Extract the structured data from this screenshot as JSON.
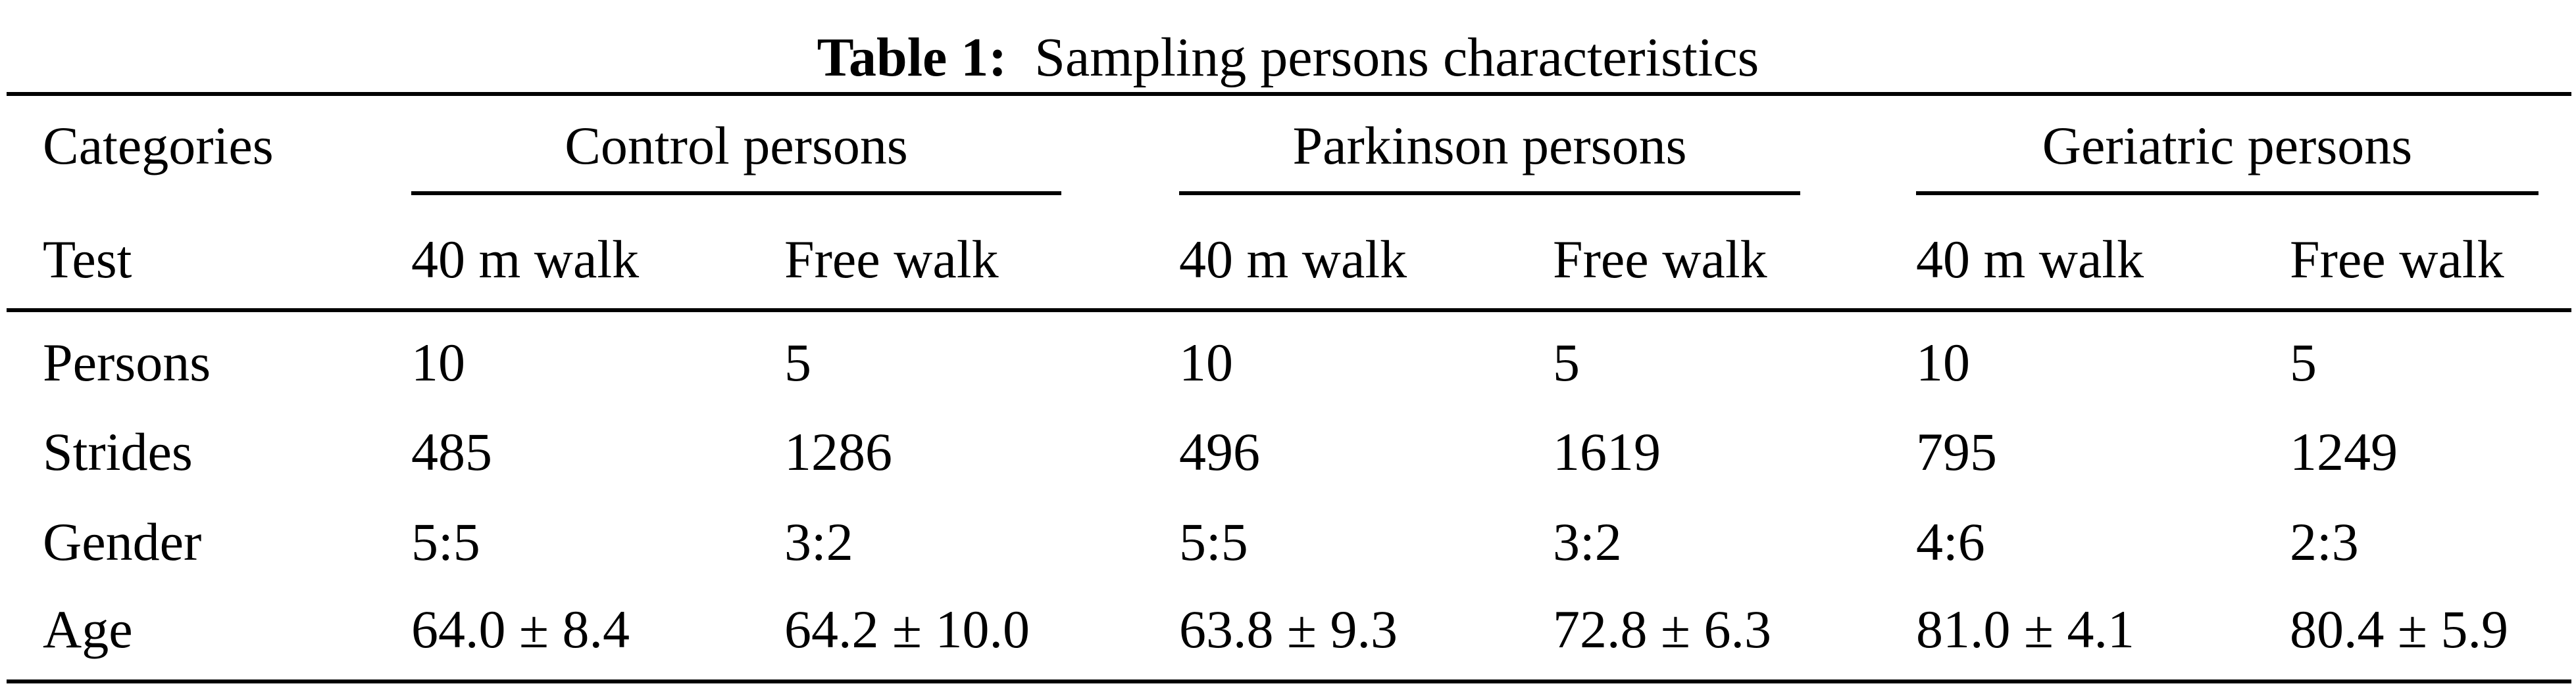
{
  "caption": {
    "label": "Table 1:",
    "text": "Sampling persons characteristics"
  },
  "table": {
    "stub_header_1": "Categories",
    "stub_header_2": "Test",
    "groups": [
      {
        "label": "Control persons"
      },
      {
        "label": "Parkinson persons"
      },
      {
        "label": "Geriatric persons"
      }
    ],
    "subheaders": [
      "40 m walk",
      "Free walk",
      "40 m walk",
      "Free walk",
      "40 m walk",
      "Free walk"
    ],
    "rows": [
      {
        "label": "Persons",
        "values": [
          "10",
          "5",
          "10",
          "5",
          "10",
          "5"
        ]
      },
      {
        "label": "Strides",
        "values": [
          "485",
          "1286",
          "496",
          "1619",
          "795",
          "1249"
        ]
      },
      {
        "label": "Gender",
        "values": [
          "5:5",
          "3:2",
          "5:5",
          "3:2",
          "4:6",
          "2:3"
        ]
      },
      {
        "label": "Age",
        "values": [
          "64.0 ± 8.4",
          "64.2 ± 10.0",
          "63.8 ± 9.3",
          "72.8 ± 6.3",
          "81.0 ± 4.1",
          "80.4 ± 5.9"
        ]
      }
    ]
  },
  "chart_data": {
    "type": "table",
    "title": "Table 1: Sampling persons characteristics",
    "columns": [
      "Categories / Test",
      "Control persons — 40 m walk",
      "Control persons — Free walk",
      "Parkinson persons — 40 m walk",
      "Parkinson persons — Free walk",
      "Geriatric persons — 40 m walk",
      "Geriatric persons — Free walk"
    ],
    "rows": [
      [
        "Persons",
        "10",
        "5",
        "10",
        "5",
        "10",
        "5"
      ],
      [
        "Strides",
        "485",
        "1286",
        "496",
        "1619",
        "795",
        "1249"
      ],
      [
        "Gender",
        "5:5",
        "3:2",
        "5:5",
        "3:2",
        "4:6",
        "2:3"
      ],
      [
        "Age",
        "64.0 ± 8.4",
        "64.2 ± 10.0",
        "63.8 ± 9.3",
        "72.8 ± 6.3",
        "81.0 ± 4.1",
        "80.4 ± 5.9"
      ]
    ]
  }
}
